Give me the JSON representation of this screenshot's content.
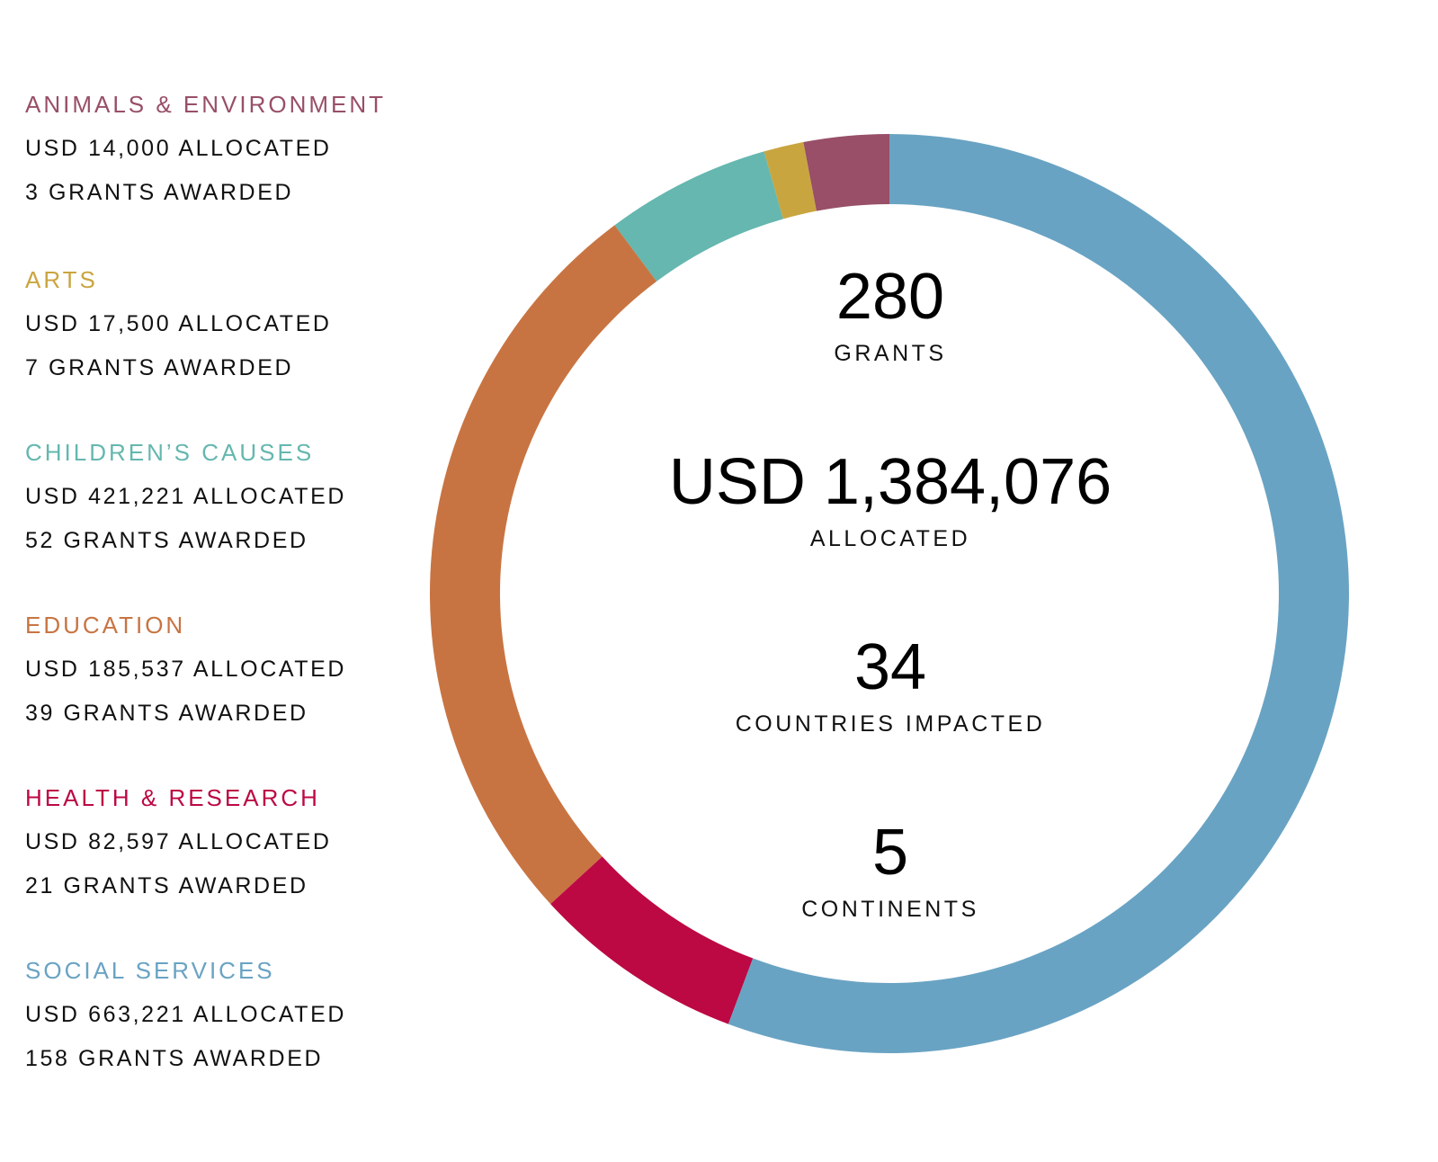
{
  "legend": [
    {
      "title": "ANIMALS & ENVIRONMENT",
      "allocated": "USD 14,000 ALLOCATED",
      "grants": "3 GRANTS AWARDED",
      "color": "#984f67"
    },
    {
      "title": "ARTS",
      "allocated": "USD 17,500 ALLOCATED",
      "grants": "7 GRANTS AWARDED",
      "color": "#c9a53f"
    },
    {
      "title": "CHILDREN’S CAUSES",
      "allocated": "USD 421,221 ALLOCATED",
      "grants": "52 GRANTS AWARDED",
      "color": "#65b7af"
    },
    {
      "title": "EDUCATION",
      "allocated": "USD 185,537 ALLOCATED",
      "grants": "39 GRANTS AWARDED",
      "color": "#c87442"
    },
    {
      "title": "HEALTH & RESEARCH",
      "allocated": "USD 82,597 ALLOCATED",
      "grants": "21 GRANTS AWARDED",
      "color": "#bc0943"
    },
    {
      "title": "SOCIAL SERVICES",
      "allocated": "USD 663,221 ALLOCATED",
      "grants": "158 GRANTS AWARDED",
      "color": "#69a3c3"
    }
  ],
  "center": {
    "grants_value": "280",
    "grants_label": "GRANTS",
    "allocated_value": "USD 1,384,076",
    "allocated_label": "ALLOCATED",
    "countries_value": "34",
    "countries_label": "COUNTRIES IMPACTED",
    "continents_value": "5",
    "continents_label": "CONTINENTS"
  },
  "chart_data": {
    "type": "pie",
    "variant": "donut",
    "title": "",
    "start_angle_deg": 0,
    "direction": "counterclockwise",
    "slices": [
      {
        "name": "ANIMALS & ENVIRONMENT",
        "value": 3,
        "color": "#984f67"
      },
      {
        "name": "ARTS",
        "value": 1.4,
        "color": "#c9a53f"
      },
      {
        "name": "CHILDREN’S CAUSES",
        "value": 5.8,
        "color": "#65b7af"
      },
      {
        "name": "EDUCATION",
        "value": 26.6,
        "color": "#c87442"
      },
      {
        "name": "HEALTH & RESEARCH",
        "value": 7.5,
        "color": "#bc0943"
      },
      {
        "name": "SOCIAL SERVICES",
        "value": 55.7,
        "color": "#69a3c3"
      }
    ]
  }
}
